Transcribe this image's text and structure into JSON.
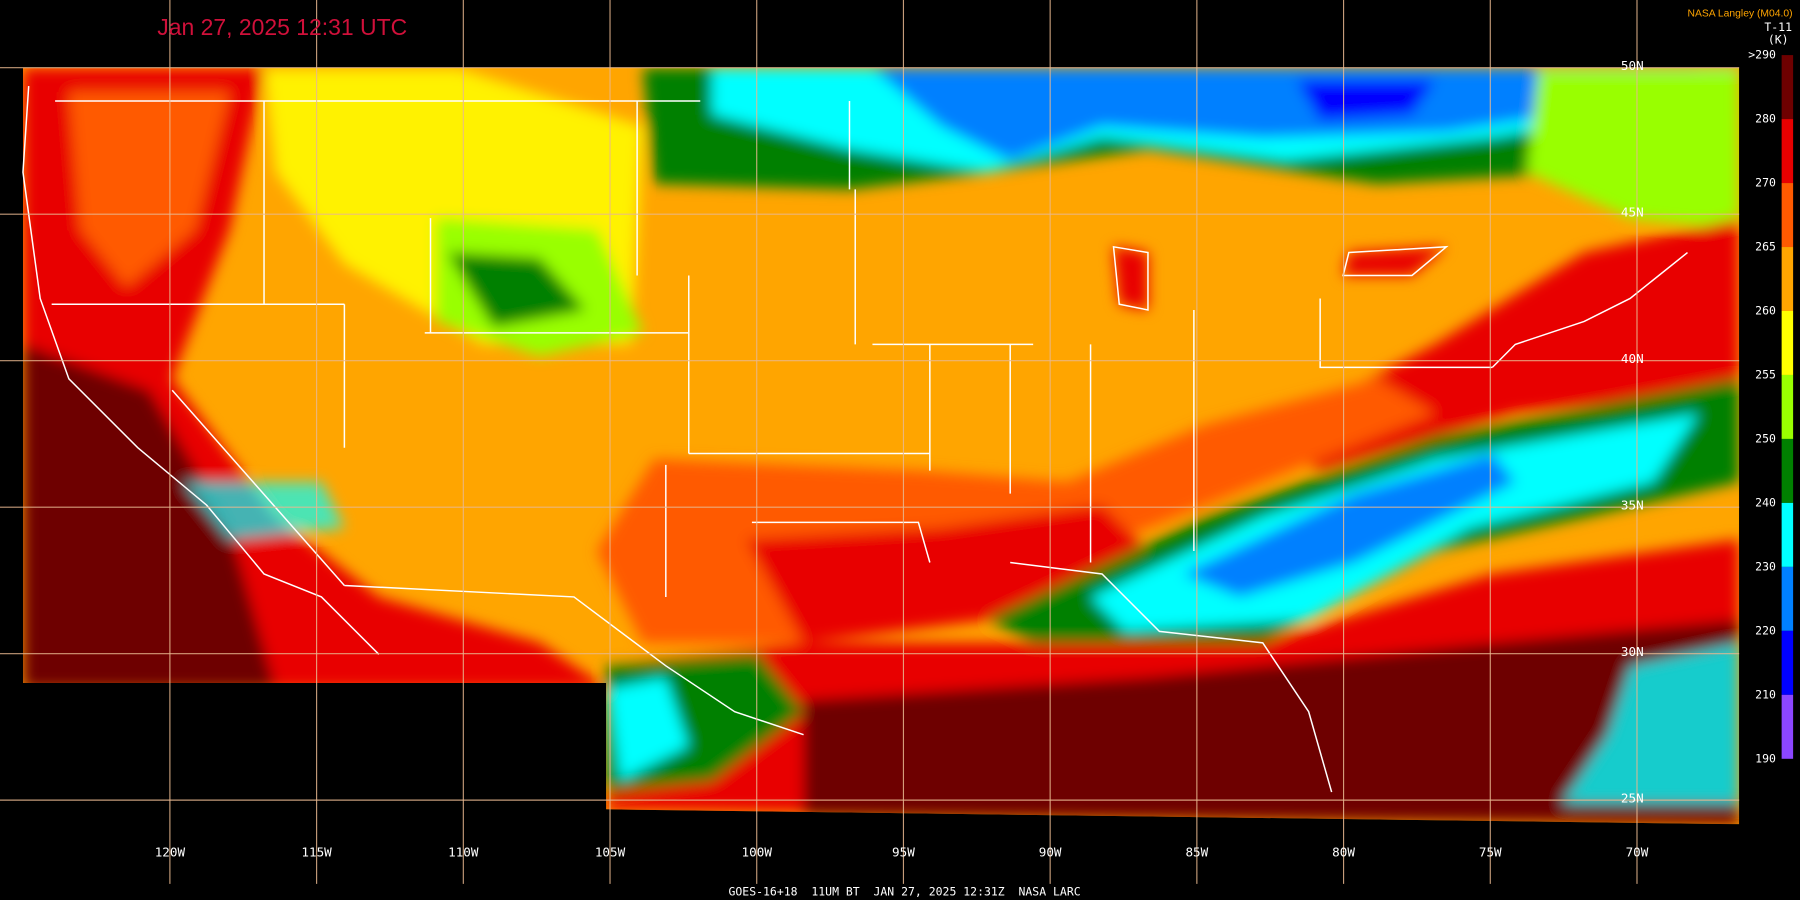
{
  "header": {
    "timestamp": "Jan 27, 2025 12:31 UTC",
    "credit": "NASA Langley (M04.0)"
  },
  "colorbar": {
    "title": "T-11",
    "unit": "(K)",
    "labels": [
      ">290",
      "280",
      "270",
      "265",
      "260",
      "255",
      "250",
      "240",
      "230",
      "220",
      "210",
      "190"
    ],
    "colors": [
      "#6e0000",
      "#e80000",
      "#ff5a00",
      "#ffa500",
      "#ffff00",
      "#99ff00",
      "#008000",
      "#00ffff",
      "#0080ff",
      "#0000ff",
      "#8c46ff"
    ]
  },
  "map": {
    "longitude_labels": [
      "120W",
      "115W",
      "110W",
      "105W",
      "100W",
      "95W",
      "90W",
      "85W",
      "80W",
      "75W",
      "70W"
    ],
    "latitude_labels": [
      "50N",
      "45N",
      "40N",
      "35N",
      "30N",
      "25N"
    ]
  },
  "footer": "GOES-16+18  11UM BT  JAN 27, 2025 12:31Z  NASA LARC"
}
